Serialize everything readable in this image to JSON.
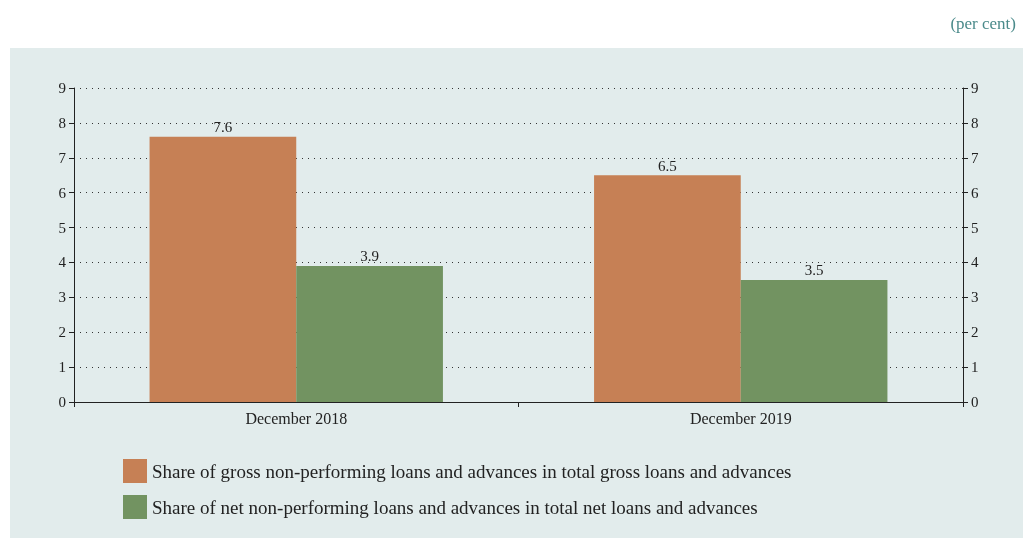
{
  "chart_data": {
    "type": "bar",
    "annotations": [
      "(per cent)"
    ],
    "categories": [
      "December 2018",
      "December 2019"
    ],
    "series": [
      {
        "name": "Share of gross non-performing loans and advances in total gross loans and advances",
        "color": "#c68055",
        "values": [
          7.6,
          6.5
        ]
      },
      {
        "name": "Share of net non-performing loans and advances in total net loans and advances",
        "color": "#729361",
        "values": [
          3.9,
          3.5
        ]
      }
    ],
    "ylim": [
      0,
      9
    ],
    "yticks": [
      0,
      1,
      2,
      3,
      4,
      5,
      6,
      7,
      8,
      9
    ],
    "y2lim": [
      0,
      9
    ],
    "y2ticks": [
      0,
      1,
      2,
      3,
      4,
      5,
      6,
      7,
      8,
      9
    ],
    "grid": "y",
    "legend": "bottom",
    "data_labels": true
  }
}
